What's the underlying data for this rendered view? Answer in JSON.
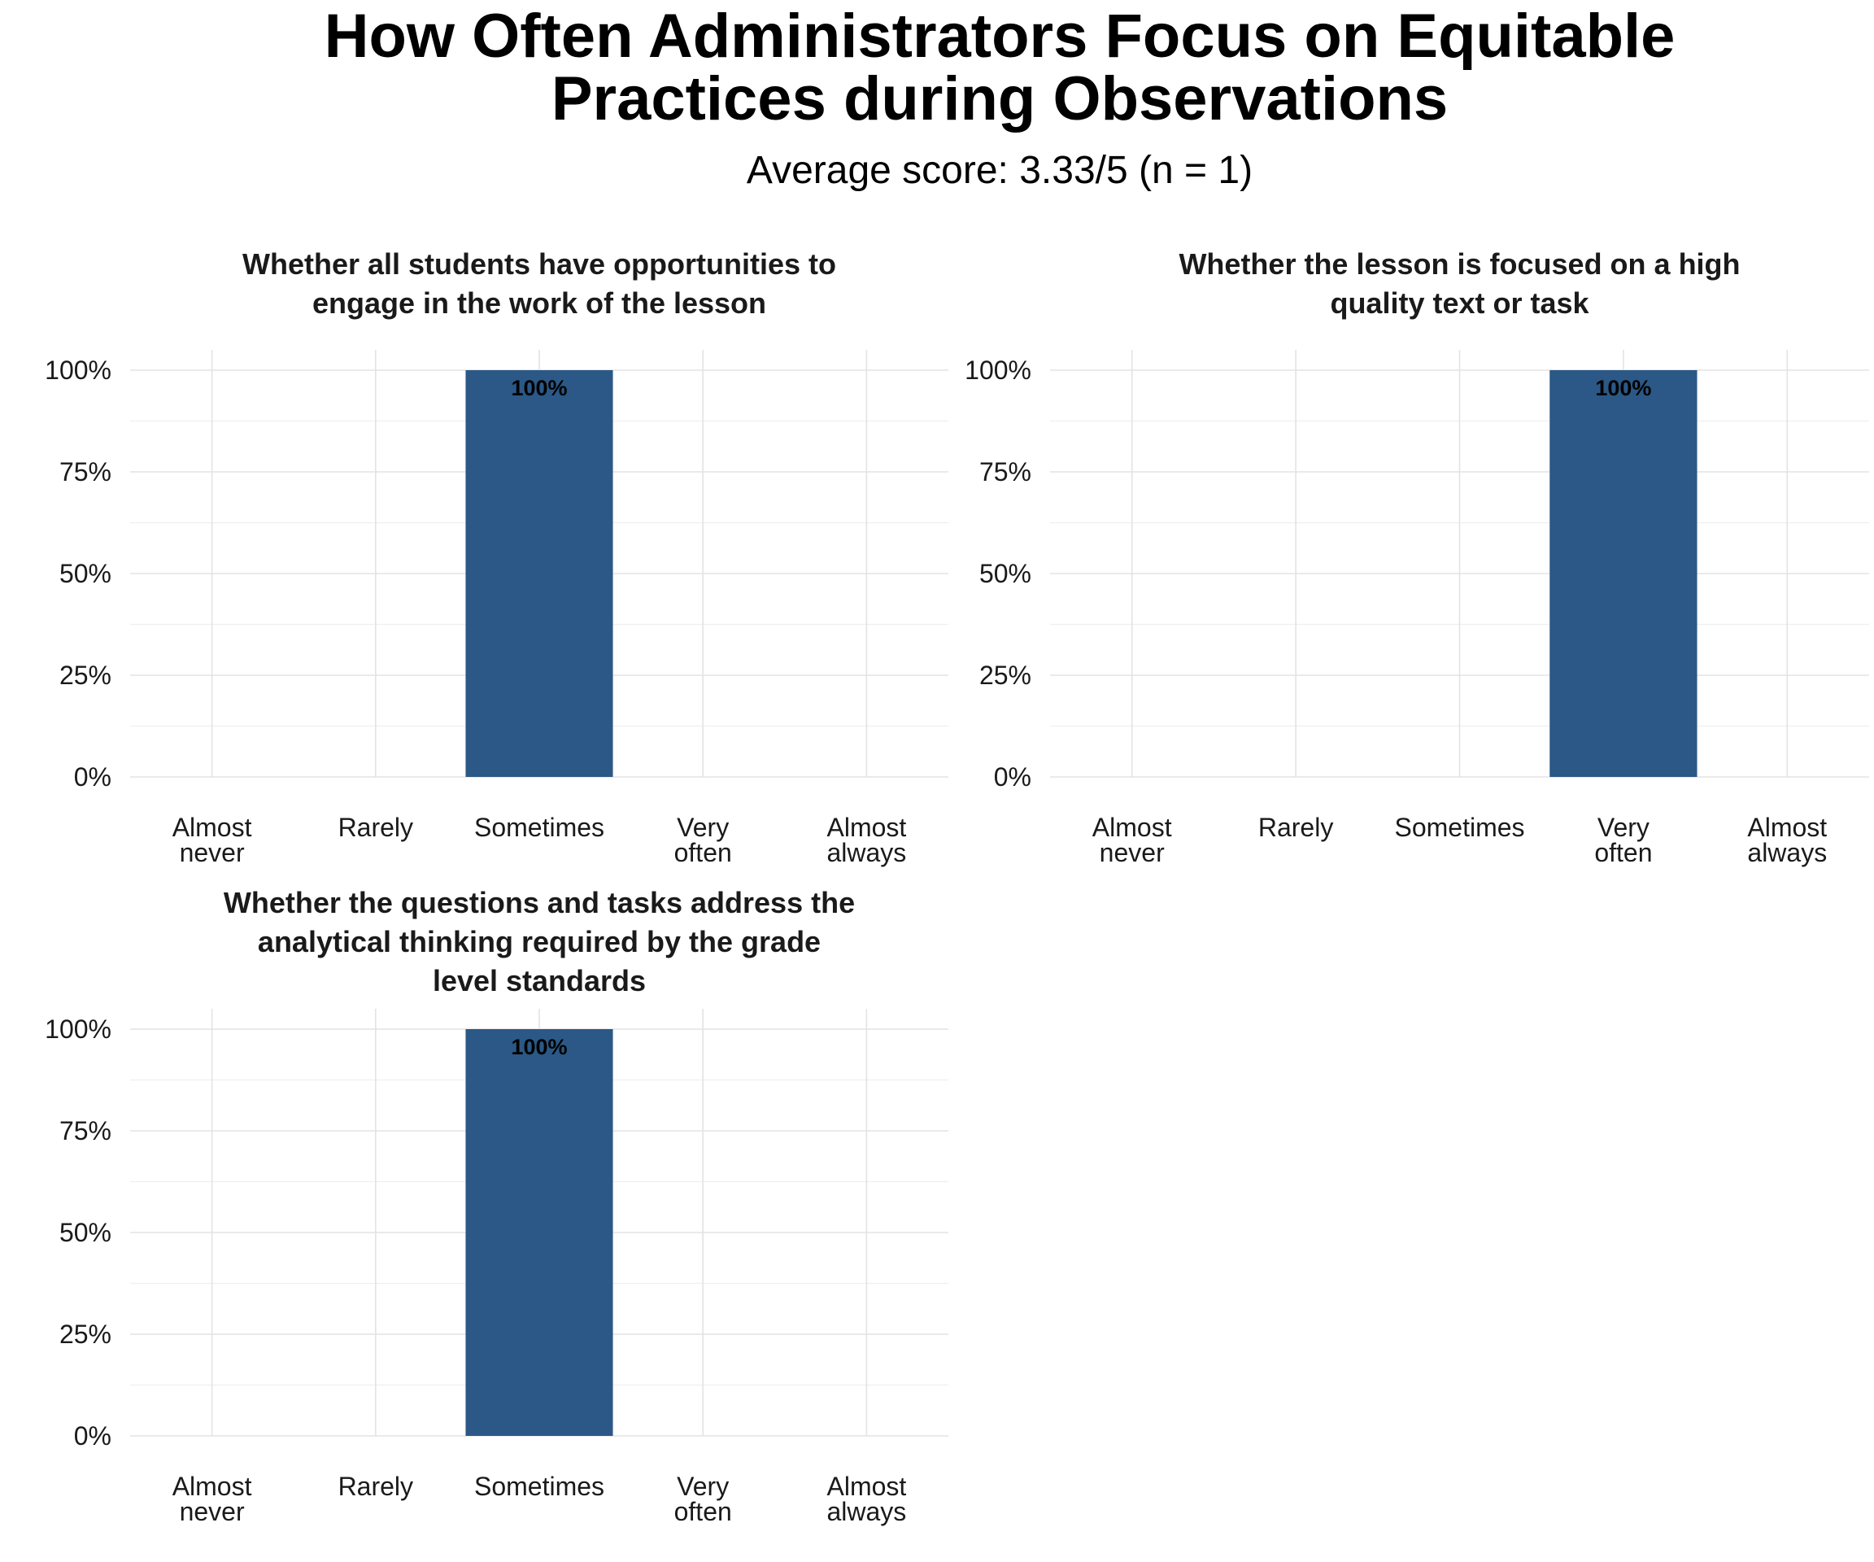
{
  "title_lines": [
    "How Often Administrators Focus on Equitable",
    "Practices during Observations"
  ],
  "subtitle": "Average score: 3.33/5 (n = 1)",
  "chart_data": [
    {
      "type": "bar",
      "title_lines": [
        "Whether all students have opportunities to",
        "engage in the work of the lesson"
      ],
      "categories": [
        [
          "Almost",
          "never"
        ],
        [
          "Rarely"
        ],
        [
          "Sometimes"
        ],
        [
          "Very",
          "often"
        ],
        [
          "Almost",
          "always"
        ]
      ],
      "values": [
        0,
        0,
        100,
        0,
        0
      ],
      "data_labels": [
        "",
        "",
        "100%",
        "",
        ""
      ],
      "ylim": [
        0,
        100
      ],
      "yticks": [
        0,
        25,
        50,
        75,
        100
      ],
      "ytick_labels": [
        "0%",
        "25%",
        "50%",
        "75%",
        "100%"
      ],
      "bar_color": "#2b5886",
      "grid": true
    },
    {
      "type": "bar",
      "title_lines": [
        "Whether the lesson is focused on a high",
        "quality text or task"
      ],
      "categories": [
        [
          "Almost",
          "never"
        ],
        [
          "Rarely"
        ],
        [
          "Sometimes"
        ],
        [
          "Very",
          "often"
        ],
        [
          "Almost",
          "always"
        ]
      ],
      "values": [
        0,
        0,
        0,
        100,
        0
      ],
      "data_labels": [
        "",
        "",
        "",
        "100%",
        ""
      ],
      "ylim": [
        0,
        100
      ],
      "yticks": [
        0,
        25,
        50,
        75,
        100
      ],
      "ytick_labels": [
        "0%",
        "25%",
        "50%",
        "75%",
        "100%"
      ],
      "bar_color": "#2b5886",
      "grid": true
    },
    {
      "type": "bar",
      "title_lines": [
        "Whether the questions and tasks address the",
        "analytical thinking required by the grade",
        "level standards"
      ],
      "categories": [
        [
          "Almost",
          "never"
        ],
        [
          "Rarely"
        ],
        [
          "Sometimes"
        ],
        [
          "Very",
          "often"
        ],
        [
          "Almost",
          "always"
        ]
      ],
      "values": [
        0,
        0,
        100,
        0,
        0
      ],
      "data_labels": [
        "",
        "",
        "100%",
        "",
        ""
      ],
      "ylim": [
        0,
        100
      ],
      "yticks": [
        0,
        25,
        50,
        75,
        100
      ],
      "ytick_labels": [
        "0%",
        "25%",
        "50%",
        "75%",
        "100%"
      ],
      "bar_color": "#2b5886",
      "grid": true
    }
  ]
}
